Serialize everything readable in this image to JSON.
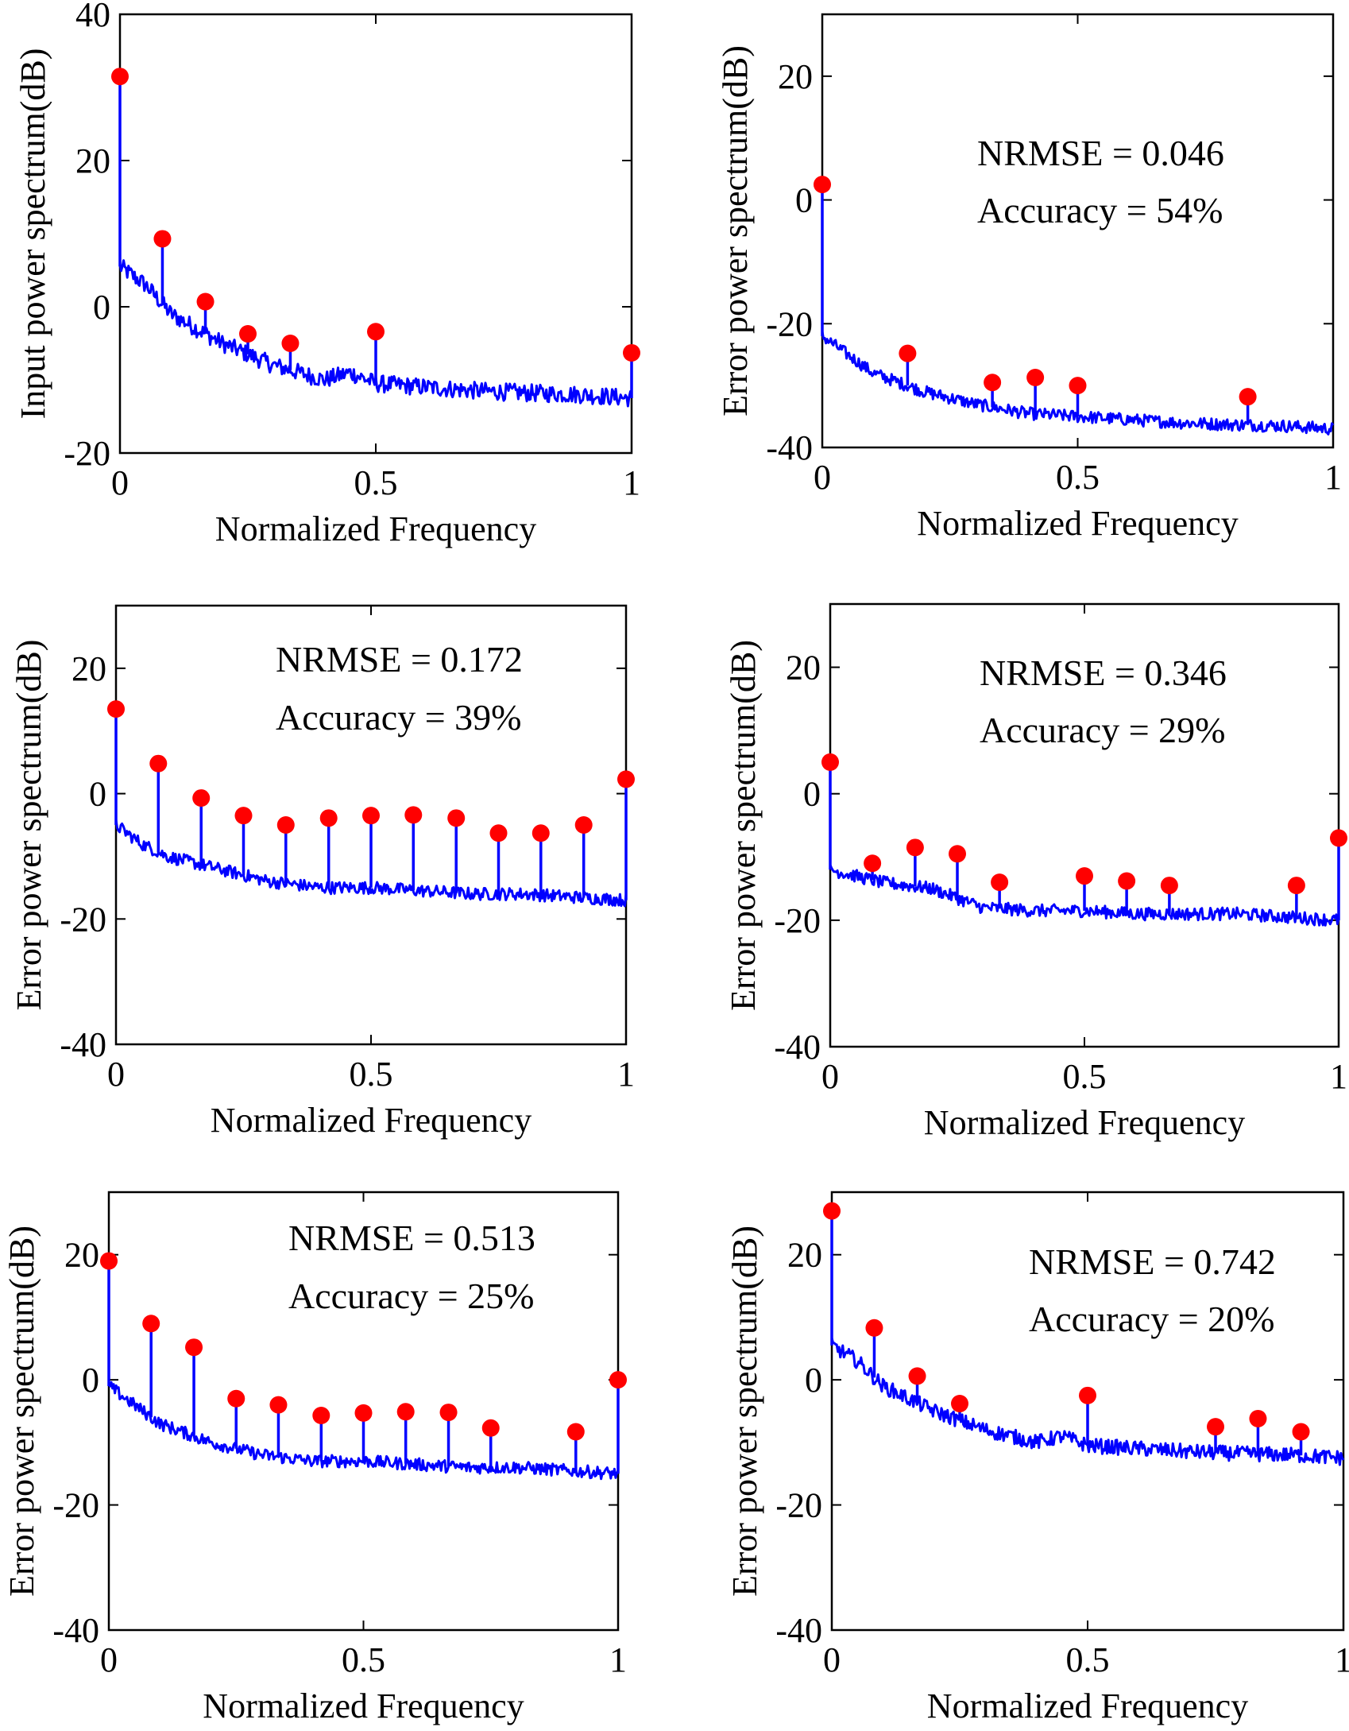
{
  "chart_data": [
    {
      "type": "line",
      "xlabel": "Normalized Frequency",
      "ylabel": "Input power spectrum(dB)",
      "xlim": [
        0,
        1
      ],
      "ylim": [
        -20,
        40
      ],
      "xticks": [
        "0",
        "0.5",
        "1"
      ],
      "yticks": [
        "-20",
        "0",
        "20",
        "40"
      ],
      "annotations": [],
      "baseline": {
        "points": [
          [
            0,
            5.5
          ],
          [
            0.05,
            3
          ],
          [
            0.1,
            -1
          ],
          [
            0.2,
            -5
          ],
          [
            0.3,
            -8
          ],
          [
            0.4,
            -10
          ],
          [
            0.45,
            -9
          ],
          [
            0.5,
            -10.5
          ],
          [
            0.6,
            -11
          ],
          [
            0.7,
            -11.5
          ],
          [
            0.8,
            -11.8
          ],
          [
            0.9,
            -12
          ],
          [
            1,
            -12.5
          ]
        ],
        "noise": 1.2
      },
      "peaks": [
        [
          0,
          31.5
        ],
        [
          0.083,
          9.3
        ],
        [
          0.167,
          0.7
        ],
        [
          0.25,
          -3.7
        ],
        [
          0.333,
          -5
        ],
        [
          0.5,
          -3.4
        ],
        [
          1,
          -6.3
        ]
      ],
      "colors": {
        "line": "#0000ff",
        "marker": "#ff0000"
      }
    },
    {
      "type": "line",
      "xlabel": "Normalized Frequency",
      "ylabel": "Error power spectrum(dB)",
      "xlim": [
        0,
        1
      ],
      "ylim": [
        -40,
        30
      ],
      "xticks": [
        "0",
        "0.5",
        "1"
      ],
      "yticks": [
        "-40",
        "-20",
        "0",
        "20"
      ],
      "annotations": [
        "NRMSE = 0.046",
        "Accuracy = 54%"
      ],
      "baseline": {
        "points": [
          [
            0,
            -22
          ],
          [
            0.05,
            -25
          ],
          [
            0.1,
            -28
          ],
          [
            0.2,
            -31
          ],
          [
            0.3,
            -33
          ],
          [
            0.4,
            -34.5
          ],
          [
            0.5,
            -35
          ],
          [
            0.6,
            -35.5
          ],
          [
            0.7,
            -36
          ],
          [
            0.8,
            -36.3
          ],
          [
            0.9,
            -36.5
          ],
          [
            1,
            -37
          ]
        ],
        "noise": 1.0
      },
      "peaks": [
        [
          0,
          2.5
        ],
        [
          0.167,
          -24.8
        ],
        [
          0.333,
          -29.5
        ],
        [
          0.417,
          -28.7
        ],
        [
          0.5,
          -30
        ],
        [
          0.833,
          -31.8
        ]
      ],
      "colors": {
        "line": "#0000ff",
        "marker": "#ff0000"
      }
    },
    {
      "type": "line",
      "xlabel": "Normalized Frequency",
      "ylabel": "Error power spectrum(dB)",
      "xlim": [
        0,
        1
      ],
      "ylim": [
        -40,
        30
      ],
      "xticks": [
        "0",
        "0.5",
        "1"
      ],
      "yticks": [
        "-40",
        "-20",
        "0",
        "20"
      ],
      "annotations": [
        "NRMSE = 0.172",
        "Accuracy = 39%"
      ],
      "baseline": {
        "points": [
          [
            0,
            -5
          ],
          [
            0.05,
            -8
          ],
          [
            0.1,
            -10
          ],
          [
            0.2,
            -12
          ],
          [
            0.3,
            -14
          ],
          [
            0.4,
            -15
          ],
          [
            0.5,
            -15
          ],
          [
            0.6,
            -15.5
          ],
          [
            0.7,
            -16
          ],
          [
            0.8,
            -16
          ],
          [
            0.9,
            -16.5
          ],
          [
            1,
            -17
          ]
        ],
        "noise": 1.0
      },
      "peaks": [
        [
          0,
          13.5
        ],
        [
          0.083,
          4.8
        ],
        [
          0.167,
          -0.7
        ],
        [
          0.25,
          -3.5
        ],
        [
          0.333,
          -5
        ],
        [
          0.417,
          -3.9
        ],
        [
          0.5,
          -3.5
        ],
        [
          0.583,
          -3.4
        ],
        [
          0.667,
          -3.9
        ],
        [
          0.75,
          -6.3
        ],
        [
          0.833,
          -6.3
        ],
        [
          0.917,
          -5
        ],
        [
          1,
          2.3
        ]
      ],
      "colors": {
        "line": "#0000ff",
        "marker": "#ff0000"
      }
    },
    {
      "type": "line",
      "xlabel": "Normalized Frequency",
      "ylabel": "Error power spectrum(dB)",
      "xlim": [
        0,
        1
      ],
      "ylim": [
        -40,
        30
      ],
      "xticks": [
        "0",
        "0.5",
        "1"
      ],
      "yticks": [
        "-40",
        "-20",
        "0",
        "20"
      ],
      "annotations": [
        "NRMSE = 0.346",
        "Accuracy = 29%"
      ],
      "baseline": {
        "points": [
          [
            0,
            -12
          ],
          [
            0.05,
            -13
          ],
          [
            0.1,
            -14
          ],
          [
            0.2,
            -15
          ],
          [
            0.3,
            -18
          ],
          [
            0.4,
            -18.5
          ],
          [
            0.5,
            -18.5
          ],
          [
            0.6,
            -19
          ],
          [
            0.7,
            -19
          ],
          [
            0.8,
            -19
          ],
          [
            0.9,
            -19.5
          ],
          [
            1,
            -20
          ]
        ],
        "noise": 1.0
      },
      "peaks": [
        [
          0,
          5
        ],
        [
          0.083,
          -11
        ],
        [
          0.167,
          -8.5
        ],
        [
          0.25,
          -9.5
        ],
        [
          0.333,
          -14
        ],
        [
          0.5,
          -13
        ],
        [
          0.583,
          -13.8
        ],
        [
          0.667,
          -14.5
        ],
        [
          0.917,
          -14.5
        ],
        [
          1,
          -7
        ]
      ],
      "colors": {
        "line": "#0000ff",
        "marker": "#ff0000"
      }
    },
    {
      "type": "line",
      "xlabel": "Normalized Frequency",
      "ylabel": "Error power spectrum(dB)",
      "xlim": [
        0,
        1
      ],
      "ylim": [
        -40,
        30
      ],
      "xticks": [
        "0",
        "0.5",
        "1"
      ],
      "yticks": [
        "-40",
        "-20",
        "0",
        "20"
      ],
      "annotations": [
        "NRMSE = 0.513",
        "Accuracy = 25%"
      ],
      "baseline": {
        "points": [
          [
            0,
            -1
          ],
          [
            0.05,
            -4
          ],
          [
            0.1,
            -7
          ],
          [
            0.2,
            -10
          ],
          [
            0.3,
            -12
          ],
          [
            0.4,
            -13
          ],
          [
            0.5,
            -13
          ],
          [
            0.6,
            -13.5
          ],
          [
            0.7,
            -14
          ],
          [
            0.8,
            -14
          ],
          [
            0.9,
            -14.5
          ],
          [
            1,
            -15
          ]
        ],
        "noise": 1.0
      },
      "peaks": [
        [
          0,
          19
        ],
        [
          0.083,
          9
        ],
        [
          0.167,
          5.2
        ],
        [
          0.25,
          -3
        ],
        [
          0.333,
          -4
        ],
        [
          0.417,
          -5.7
        ],
        [
          0.5,
          -5.3
        ],
        [
          0.583,
          -5.1
        ],
        [
          0.667,
          -5.2
        ],
        [
          0.75,
          -7.7
        ],
        [
          0.917,
          -8.3
        ],
        [
          1,
          0
        ]
      ],
      "colors": {
        "line": "#0000ff",
        "marker": "#ff0000"
      }
    },
    {
      "type": "line",
      "xlabel": "Normalized Frequency",
      "ylabel": "Error power spectrum(dB)",
      "xlim": [
        0,
        1
      ],
      "ylim": [
        -40,
        30
      ],
      "xticks": [
        "0",
        "0.5",
        "1"
      ],
      "yticks": [
        "-40",
        "-20",
        "0",
        "20"
      ],
      "annotations": [
        "NRMSE = 0.742",
        "Accuracy = 20%"
      ],
      "baseline": {
        "points": [
          [
            0,
            5.5
          ],
          [
            0.05,
            3
          ],
          [
            0.1,
            -1
          ],
          [
            0.2,
            -5
          ],
          [
            0.3,
            -8
          ],
          [
            0.4,
            -10
          ],
          [
            0.45,
            -9
          ],
          [
            0.5,
            -10.5
          ],
          [
            0.6,
            -11
          ],
          [
            0.7,
            -11.5
          ],
          [
            0.8,
            -11.8
          ],
          [
            0.9,
            -12
          ],
          [
            1,
            -12.5
          ]
        ],
        "noise": 1.2
      },
      "peaks": [
        [
          0,
          27
        ],
        [
          0.083,
          8.3
        ],
        [
          0.167,
          0.6
        ],
        [
          0.25,
          -3.8
        ],
        [
          0.5,
          -2.5
        ],
        [
          0.75,
          -7.5
        ],
        [
          0.833,
          -6.2
        ],
        [
          0.917,
          -8.3
        ]
      ],
      "colors": {
        "line": "#0000ff",
        "marker": "#ff0000"
      }
    }
  ]
}
